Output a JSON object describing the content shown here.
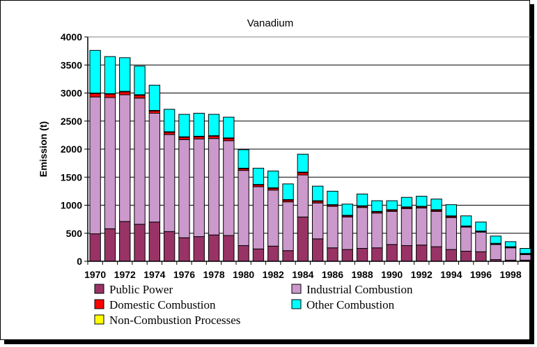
{
  "chart_data": {
    "type": "bar",
    "stacked": true,
    "title": "Vanadium",
    "xlabel": "",
    "ylabel": "Emission (t)",
    "ylim": [
      0,
      4000
    ],
    "yticks": [
      0,
      500,
      1000,
      1500,
      2000,
      2500,
      3000,
      3500,
      4000
    ],
    "grid": true,
    "legend_position": "bottom",
    "categories": [
      "1970",
      "1971",
      "1972",
      "1973",
      "1974",
      "1975",
      "1976",
      "1977",
      "1978",
      "1979",
      "1980",
      "1981",
      "1982",
      "1983",
      "1984",
      "1985",
      "1986",
      "1987",
      "1988",
      "1989",
      "1990",
      "1991",
      "1992",
      "1993",
      "1994",
      "1995",
      "1996",
      "1997",
      "1998",
      "1999"
    ],
    "xtick_labels": [
      "1970",
      "",
      "1972",
      "",
      "1974",
      "",
      "1976",
      "",
      "1978",
      "",
      "1980",
      "",
      "1982",
      "",
      "1984",
      "",
      "1986",
      "",
      "1988",
      "",
      "1990",
      "",
      "1992",
      "",
      "1994",
      "",
      "1996",
      "",
      "1998",
      ""
    ],
    "series": [
      {
        "name": "Public Power",
        "color": "#993366",
        "values": [
          490,
          580,
          710,
          660,
          700,
          530,
          420,
          440,
          470,
          460,
          280,
          220,
          270,
          190,
          790,
          400,
          240,
          210,
          230,
          240,
          300,
          280,
          290,
          260,
          210,
          180,
          170,
          30,
          20,
          20
        ]
      },
      {
        "name": "Industrial Combustion",
        "color": "#cc99cc",
        "values": [
          2440,
          2340,
          2260,
          2250,
          1940,
          1730,
          1750,
          1740,
          1720,
          1690,
          1340,
          1110,
          1000,
          870,
          750,
          640,
          740,
          580,
          730,
          620,
          590,
          660,
          660,
          630,
          570,
          430,
          350,
          270,
          220,
          100
        ]
      },
      {
        "name": "Domestic Combustion",
        "color": "#ff0000",
        "values": [
          60,
          60,
          50,
          50,
          40,
          40,
          40,
          40,
          40,
          40,
          30,
          30,
          30,
          30,
          40,
          30,
          20,
          20,
          20,
          20,
          20,
          20,
          20,
          20,
          20,
          10,
          10,
          10,
          10,
          10
        ]
      },
      {
        "name": "Non-Combustion Processes",
        "color": "#ffff00",
        "values": [
          10,
          10,
          10,
          10,
          10,
          10,
          10,
          10,
          10,
          10,
          10,
          10,
          10,
          10,
          10,
          10,
          10,
          10,
          10,
          10,
          10,
          10,
          10,
          10,
          10,
          10,
          10,
          10,
          10,
          10
        ]
      },
      {
        "name": "Other Combustion",
        "color": "#00ffff",
        "values": [
          760,
          660,
          600,
          510,
          450,
          400,
          400,
          410,
          380,
          370,
          330,
          290,
          300,
          280,
          320,
          260,
          240,
          200,
          210,
          190,
          160,
          170,
          180,
          190,
          200,
          180,
          160,
          130,
          90,
          90
        ]
      }
    ],
    "legend_order": [
      "Public Power",
      "Industrial Combustion",
      "Domestic Combustion",
      "Other Combustion",
      "Non-Combustion Processes"
    ],
    "colors": {
      "frame": "#000000",
      "grid": "#000000",
      "background": "#ffffff"
    }
  }
}
